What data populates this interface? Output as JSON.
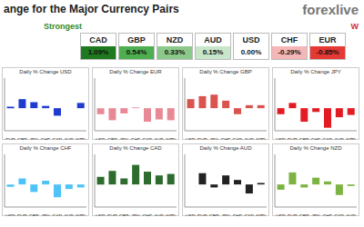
{
  "header": {
    "title": "ange for the Major Currency Pairs",
    "logo": "forexlive",
    "strongest": "Strongest",
    "weakest": "W",
    "currencies": [
      {
        "name": "CAD",
        "value": "1.09%",
        "color": "#1f7a1f"
      },
      {
        "name": "GBP",
        "value": "0.54%",
        "color": "#4caf50"
      },
      {
        "name": "NZD",
        "value": "0.33%",
        "color": "#8bc98b"
      },
      {
        "name": "AUD",
        "value": "0.15%",
        "color": "#c8e6c9"
      },
      {
        "name": "USD",
        "value": "0.00%",
        "color": "#ffffff"
      },
      {
        "name": "CHF",
        "value": "-0.29%",
        "color": "#f4b6b6"
      },
      {
        "name": "EUR",
        "value": "-0.85%",
        "color": "#e53935"
      }
    ]
  },
  "chart_data": [
    {
      "type": "bar",
      "title": "Daily % Change USD",
      "categories": [
        "EUR",
        "GBP",
        "JPY",
        "CHF",
        "CAD",
        "AUD",
        "NZD"
      ],
      "values": [
        0.02,
        0.12,
        0.08,
        0.03,
        -0.1,
        0.0,
        0.07
      ],
      "color": "#1f3ccf",
      "ylim": [
        -0.3,
        0.4
      ],
      "yticks": [
        -0.2,
        0,
        0.2,
        0.4
      ],
      "grid": false,
      "tick_labels": "x"
    },
    {
      "type": "bar",
      "title": "Daily % Change EUR",
      "categories": [
        "USD",
        "GBP",
        "JPY",
        "CHF",
        "CAD",
        "AUD",
        "NZD"
      ],
      "values": [
        -0.08,
        -0.16,
        -0.07,
        0.01,
        -0.18,
        -0.15,
        -0.16
      ],
      "color": "#e88a96",
      "ylim": [
        -0.3,
        0.4
      ],
      "yticks": [
        -0.2,
        0,
        0.2,
        0.4
      ],
      "grid": false,
      "tick_labels": "x"
    },
    {
      "type": "bar",
      "title": "Daily % Change GBP",
      "categories": [
        "USD",
        "EUR",
        "JPY",
        "CHF",
        "CAD",
        "AUD",
        "NZD"
      ],
      "values": [
        0.12,
        0.16,
        0.18,
        0.1,
        -0.08,
        0.04,
        0.04
      ],
      "color": "#d9534f",
      "ylim": [
        -0.3,
        0.4
      ],
      "yticks": [
        -0.2,
        0,
        0.2,
        0.4
      ],
      "grid": false,
      "tick_labels": "x"
    },
    {
      "type": "bar",
      "title": "Daily % Change JPY",
      "categories": [
        "USD",
        "EUR",
        "GBP",
        "CHF",
        "CAD",
        "AUD",
        "NZD"
      ],
      "values": [
        -0.08,
        0.07,
        -0.18,
        -0.05,
        -0.26,
        -0.12,
        -0.09
      ],
      "color": "#e31b23",
      "ylim": [
        -0.3,
        0.4
      ],
      "yticks": [
        -0.2,
        0,
        0.2,
        0.4
      ],
      "grid": false,
      "tick_labels": "x"
    },
    {
      "type": "bar",
      "title": "Daily % Change CHF",
      "categories": [
        "USD",
        "EUR",
        "GBP",
        "JPY",
        "CAD",
        "AUD",
        "NZD"
      ],
      "values": [
        -0.03,
        0.08,
        -0.1,
        0.05,
        -0.17,
        -0.06,
        -0.04
      ],
      "color": "#4fc3f7",
      "ylim": [
        -0.3,
        0.4
      ],
      "yticks": [
        -0.2,
        0,
        0.2,
        0.4
      ],
      "grid": false,
      "tick_labels": "x"
    },
    {
      "type": "bar",
      "title": "Daily % Change CAD",
      "categories": [
        "USD",
        "EUR",
        "GBP",
        "JPY",
        "CHF",
        "AUD",
        "NZD"
      ],
      "values": [
        0.1,
        0.18,
        0.08,
        0.26,
        0.17,
        0.12,
        0.14
      ],
      "color": "#2e6b2e",
      "ylim": [
        -0.3,
        0.4
      ],
      "yticks": [
        -0.2,
        0,
        0.2,
        0.4
      ],
      "grid": false,
      "tick_labels": "x"
    },
    {
      "type": "bar",
      "title": "Daily % Change AUD",
      "categories": [
        "USD",
        "EUR",
        "GBP",
        "JPY",
        "CHF",
        "CAD",
        "NZD"
      ],
      "values": [
        0.0,
        0.15,
        -0.04,
        0.12,
        0.06,
        -0.12,
        0.02
      ],
      "color": "#222222",
      "ylim": [
        -0.3,
        0.4
      ],
      "yticks": [
        -0.2,
        0,
        0.2,
        0.4
      ],
      "grid": false,
      "tick_labels": "x"
    },
    {
      "type": "bar",
      "title": "Daily % Change NZD",
      "categories": [
        "USD",
        "EUR",
        "GBP",
        "JPY",
        "CHF",
        "CAD",
        "AUD"
      ],
      "values": [
        -0.07,
        0.16,
        -0.04,
        0.09,
        0.04,
        -0.14,
        -0.02
      ],
      "color": "#7cb342",
      "ylim": [
        -0.3,
        0.4
      ],
      "yticks": [
        -0.2,
        0,
        0.2,
        0.4
      ],
      "grid": false,
      "tick_labels": "x"
    }
  ]
}
